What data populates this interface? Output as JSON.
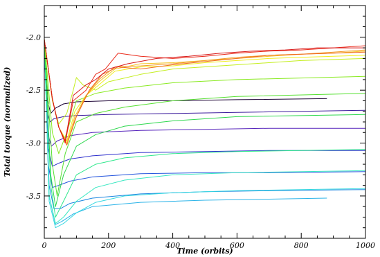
{
  "chart_data": {
    "type": "line",
    "title": "",
    "xlabel": "Time (orbits)",
    "ylabel": "Total torque (normalized)",
    "xlim": [
      0,
      1000
    ],
    "ylim": [
      -3.9,
      -1.7
    ],
    "x_ticks": [
      0,
      200,
      400,
      600,
      800,
      1000
    ],
    "x_tick_labels": [
      "0",
      "200",
      "400",
      "600",
      "800",
      "1000"
    ],
    "y_ticks": [
      -3.5,
      -3.0,
      -2.5,
      -2.0
    ],
    "y_tick_labels": [
      "-3.5",
      "-3.0",
      "-2.5",
      "-2.0"
    ],
    "grid": false,
    "legend": "none",
    "series": [
      {
        "color": "#1a0033",
        "values": [
          [
            0,
            -2.02
          ],
          [
            10,
            -2.6
          ],
          [
            20,
            -2.72
          ],
          [
            35,
            -2.67
          ],
          [
            60,
            -2.63
          ],
          [
            100,
            -2.61
          ],
          [
            200,
            -2.6
          ],
          [
            400,
            -2.6
          ],
          [
            600,
            -2.59
          ],
          [
            880,
            -2.58
          ]
        ]
      },
      {
        "color": "#3a1a9c",
        "values": [
          [
            0,
            -2.02
          ],
          [
            8,
            -2.7
          ],
          [
            18,
            -2.8
          ],
          [
            30,
            -2.77
          ],
          [
            60,
            -2.75
          ],
          [
            100,
            -2.74
          ],
          [
            200,
            -2.73
          ],
          [
            400,
            -2.72
          ],
          [
            600,
            -2.71
          ],
          [
            1000,
            -2.69
          ]
        ]
      },
      {
        "color": "#5522bb",
        "values": [
          [
            0,
            -2.02
          ],
          [
            10,
            -2.9
          ],
          [
            22,
            -3.03
          ],
          [
            40,
            -2.98
          ],
          [
            80,
            -2.93
          ],
          [
            150,
            -2.9
          ],
          [
            300,
            -2.88
          ],
          [
            500,
            -2.87
          ],
          [
            700,
            -2.86
          ],
          [
            1000,
            -2.86
          ]
        ]
      },
      {
        "color": "#2d2fcc",
        "values": [
          [
            0,
            -2.02
          ],
          [
            12,
            -3.05
          ],
          [
            25,
            -3.22
          ],
          [
            45,
            -3.19
          ],
          [
            80,
            -3.15
          ],
          [
            150,
            -3.12
          ],
          [
            300,
            -3.09
          ],
          [
            500,
            -3.08
          ],
          [
            700,
            -3.07
          ],
          [
            1000,
            -3.07
          ]
        ]
      },
      {
        "color": "#2455dd",
        "values": [
          [
            0,
            -2.02
          ],
          [
            12,
            -3.2
          ],
          [
            25,
            -3.42
          ],
          [
            45,
            -3.4
          ],
          [
            80,
            -3.36
          ],
          [
            150,
            -3.32
          ],
          [
            300,
            -3.29
          ],
          [
            500,
            -3.28
          ],
          [
            700,
            -3.28
          ],
          [
            1000,
            -3.27
          ]
        ]
      },
      {
        "color": "#1a86e0",
        "values": [
          [
            0,
            -2.02
          ],
          [
            15,
            -3.4
          ],
          [
            30,
            -3.62
          ],
          [
            50,
            -3.62
          ],
          [
            80,
            -3.57
          ],
          [
            150,
            -3.52
          ],
          [
            300,
            -3.48
          ],
          [
            500,
            -3.46
          ],
          [
            700,
            -3.45
          ],
          [
            1000,
            -3.44
          ]
        ]
      },
      {
        "color": "#2ab3e8",
        "values": [
          [
            0,
            -2.02
          ],
          [
            15,
            -3.5
          ],
          [
            35,
            -3.77
          ],
          [
            55,
            -3.74
          ],
          [
            90,
            -3.67
          ],
          [
            150,
            -3.6
          ],
          [
            300,
            -3.56
          ],
          [
            500,
            -3.54
          ],
          [
            700,
            -3.53
          ],
          [
            880,
            -3.52
          ]
        ]
      },
      {
        "color": "#35d8e0",
        "values": [
          [
            0,
            -2.02
          ],
          [
            15,
            -3.55
          ],
          [
            35,
            -3.8
          ],
          [
            60,
            -3.76
          ],
          [
            100,
            -3.66
          ],
          [
            160,
            -3.56
          ],
          [
            250,
            -3.5
          ],
          [
            400,
            -3.47
          ],
          [
            600,
            -3.45
          ],
          [
            1000,
            -3.43
          ]
        ]
      },
      {
        "color": "#38e8c2",
        "values": [
          [
            0,
            -2.02
          ],
          [
            15,
            -3.5
          ],
          [
            35,
            -3.76
          ],
          [
            60,
            -3.7
          ],
          [
            100,
            -3.55
          ],
          [
            160,
            -3.42
          ],
          [
            250,
            -3.35
          ],
          [
            400,
            -3.3
          ],
          [
            600,
            -3.28
          ],
          [
            1000,
            -3.26
          ]
        ]
      },
      {
        "color": "#2ee88c",
        "values": [
          [
            0,
            -2.02
          ],
          [
            20,
            -3.4
          ],
          [
            35,
            -3.7
          ],
          [
            60,
            -3.55
          ],
          [
            100,
            -3.3
          ],
          [
            160,
            -3.2
          ],
          [
            250,
            -3.14
          ],
          [
            400,
            -3.1
          ],
          [
            600,
            -3.08
          ],
          [
            1000,
            -3.06
          ]
        ]
      },
      {
        "color": "#2ed84e",
        "values": [
          [
            0,
            -2.02
          ],
          [
            20,
            -3.3
          ],
          [
            35,
            -3.6
          ],
          [
            60,
            -3.3
          ],
          [
            100,
            -3.03
          ],
          [
            160,
            -2.92
          ],
          [
            250,
            -2.84
          ],
          [
            400,
            -2.79
          ],
          [
            600,
            -2.75
          ],
          [
            1000,
            -2.73
          ]
        ]
      },
      {
        "color": "#55e030",
        "values": [
          [
            0,
            -2.02
          ],
          [
            25,
            -3.2
          ],
          [
            40,
            -3.5
          ],
          [
            65,
            -3.1
          ],
          [
            100,
            -2.8
          ],
          [
            160,
            -2.72
          ],
          [
            250,
            -2.66
          ],
          [
            400,
            -2.6
          ],
          [
            600,
            -2.56
          ],
          [
            1000,
            -2.53
          ]
        ]
      },
      {
        "color": "#8aea22",
        "values": [
          [
            0,
            -2.02
          ],
          [
            25,
            -2.9
          ],
          [
            45,
            -3.1
          ],
          [
            70,
            -2.9
          ],
          [
            100,
            -2.6
          ],
          [
            160,
            -2.53
          ],
          [
            250,
            -2.48
          ],
          [
            400,
            -2.43
          ],
          [
            600,
            -2.4
          ],
          [
            1000,
            -2.37
          ]
        ]
      },
      {
        "color": "#c4ee1e",
        "values": [
          [
            0,
            -2.02
          ],
          [
            25,
            -2.6
          ],
          [
            45,
            -2.82
          ],
          [
            70,
            -2.72
          ],
          [
            90,
            -2.5
          ],
          [
            100,
            -2.38
          ],
          [
            120,
            -2.45
          ],
          [
            160,
            -2.5
          ],
          [
            200,
            -2.42
          ],
          [
            300,
            -2.35
          ],
          [
            400,
            -2.3
          ],
          [
            600,
            -2.26
          ],
          [
            800,
            -2.22
          ],
          [
            1000,
            -2.2
          ]
        ]
      },
      {
        "color": "#f0ee20",
        "values": [
          [
            0,
            -2.02
          ],
          [
            25,
            -2.58
          ],
          [
            45,
            -2.85
          ],
          [
            70,
            -2.98
          ],
          [
            95,
            -2.7
          ],
          [
            130,
            -2.55
          ],
          [
            170,
            -2.45
          ],
          [
            220,
            -2.32
          ],
          [
            300,
            -2.28
          ],
          [
            400,
            -2.27
          ],
          [
            500,
            -2.24
          ],
          [
            600,
            -2.22
          ],
          [
            700,
            -2.2
          ],
          [
            800,
            -2.19
          ],
          [
            900,
            -2.18
          ],
          [
            1000,
            -2.17
          ]
        ]
      },
      {
        "color": "#f5c424",
        "values": [
          [
            0,
            -2.02
          ],
          [
            25,
            -2.58
          ],
          [
            45,
            -2.85
          ],
          [
            70,
            -3.0
          ],
          [
            95,
            -2.75
          ],
          [
            130,
            -2.55
          ],
          [
            170,
            -2.42
          ],
          [
            220,
            -2.3
          ],
          [
            300,
            -2.25
          ],
          [
            400,
            -2.24
          ],
          [
            500,
            -2.22
          ],
          [
            600,
            -2.2
          ],
          [
            700,
            -2.18
          ],
          [
            800,
            -2.16
          ],
          [
            900,
            -2.15
          ],
          [
            1000,
            -2.13
          ]
        ]
      },
      {
        "color": "#f39a26",
        "values": [
          [
            0,
            -2.02
          ],
          [
            25,
            -2.58
          ],
          [
            45,
            -2.85
          ],
          [
            70,
            -3.02
          ],
          [
            95,
            -2.78
          ],
          [
            130,
            -2.55
          ],
          [
            170,
            -2.4
          ],
          [
            220,
            -2.28
          ],
          [
            300,
            -2.27
          ],
          [
            400,
            -2.25
          ],
          [
            500,
            -2.22
          ],
          [
            600,
            -2.19
          ],
          [
            700,
            -2.17
          ],
          [
            800,
            -2.16
          ],
          [
            900,
            -2.14
          ],
          [
            1000,
            -2.12
          ]
        ]
      },
      {
        "color": "#f06a22",
        "values": [
          [
            0,
            -2.02
          ],
          [
            25,
            -2.58
          ],
          [
            45,
            -2.85
          ],
          [
            70,
            -3.02
          ],
          [
            100,
            -2.75
          ],
          [
            140,
            -2.5
          ],
          [
            180,
            -2.35
          ],
          [
            230,
            -2.28
          ],
          [
            300,
            -2.3
          ],
          [
            400,
            -2.26
          ],
          [
            500,
            -2.23
          ],
          [
            600,
            -2.2
          ],
          [
            700,
            -2.17
          ],
          [
            800,
            -2.16
          ],
          [
            900,
            -2.15
          ],
          [
            1000,
            -2.14
          ]
        ]
      },
      {
        "color": "#ea2a1a",
        "values": [
          [
            0,
            -2.02
          ],
          [
            25,
            -2.58
          ],
          [
            45,
            -2.85
          ],
          [
            65,
            -3.0
          ],
          [
            90,
            -2.6
          ],
          [
            130,
            -2.5
          ],
          [
            160,
            -2.35
          ],
          [
            190,
            -2.3
          ],
          [
            230,
            -2.15
          ],
          [
            300,
            -2.18
          ],
          [
            400,
            -2.2
          ],
          [
            500,
            -2.18
          ],
          [
            600,
            -2.15
          ],
          [
            700,
            -2.13
          ],
          [
            800,
            -2.12
          ],
          [
            900,
            -2.1
          ],
          [
            1000,
            -2.08
          ]
        ]
      },
      {
        "color": "#d81818",
        "values": [
          [
            0,
            -2.02
          ],
          [
            25,
            -2.58
          ],
          [
            45,
            -2.85
          ],
          [
            65,
            -2.98
          ],
          [
            90,
            -2.55
          ],
          [
            130,
            -2.45
          ],
          [
            160,
            -2.4
          ],
          [
            200,
            -2.3
          ],
          [
            260,
            -2.25
          ],
          [
            350,
            -2.2
          ],
          [
            450,
            -2.18
          ],
          [
            550,
            -2.15
          ],
          [
            650,
            -2.13
          ],
          [
            750,
            -2.12
          ],
          [
            850,
            -2.1
          ],
          [
            950,
            -2.1
          ],
          [
            1000,
            -2.1
          ]
        ]
      }
    ]
  }
}
